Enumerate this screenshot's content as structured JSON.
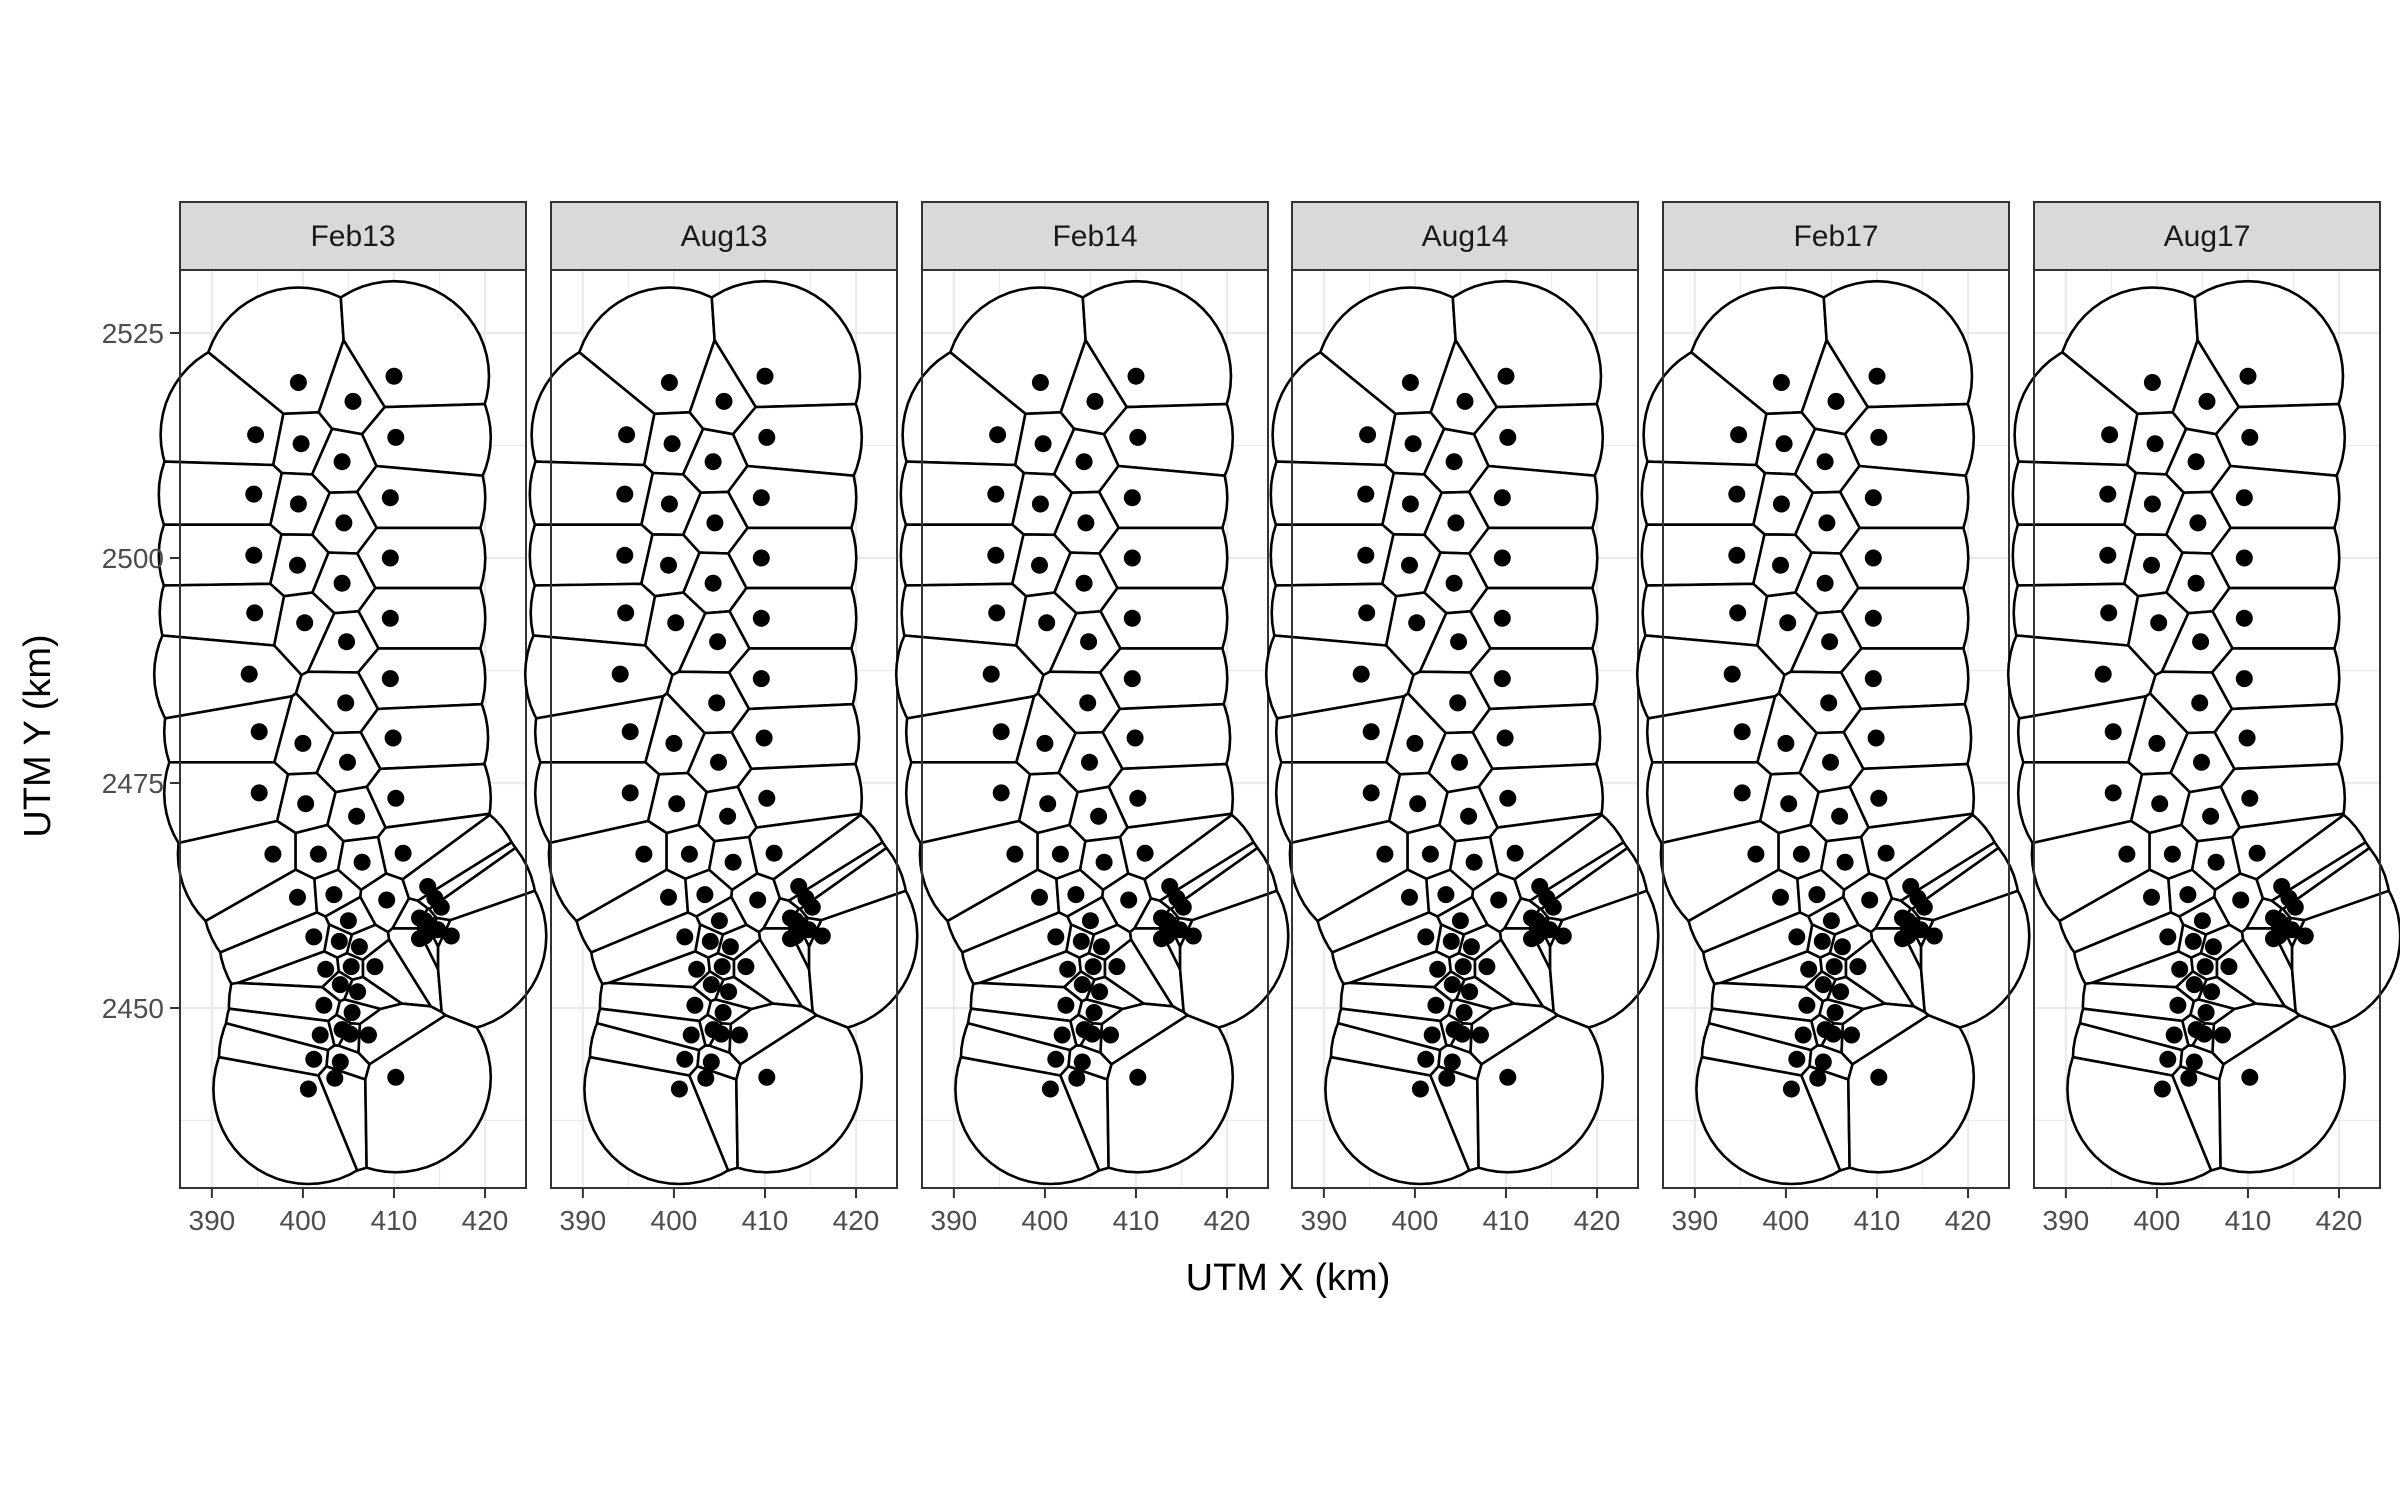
{
  "chart_data": {
    "type": "scatter",
    "description_free": true,
    "xlabel": "UTM X (km)",
    "ylabel": "UTM Y (km)",
    "xlim": [
      386.5,
      424.5
    ],
    "ylim": [
      2430,
      2532
    ],
    "x_ticks": [
      390,
      400,
      410,
      420
    ],
    "y_ticks": [
      2450,
      2475,
      2500,
      2525
    ],
    "grid": true,
    "colors": {
      "panel_border": "#333333",
      "strip_fill": "#d9d9d9",
      "grid": "#ebebeb",
      "point": "#000000"
    },
    "panels": [
      {
        "label": "Feb13"
      },
      {
        "label": "Aug13"
      },
      {
        "label": "Feb14"
      },
      {
        "label": "Aug14"
      },
      {
        "label": "Feb17"
      },
      {
        "label": "Aug17"
      }
    ],
    "points": [
      [
        399.5,
        2519.5
      ],
      [
        410,
        2520.2
      ],
      [
        394.8,
        2513.7
      ],
      [
        399.8,
        2512.7
      ],
      [
        405.5,
        2517.4
      ],
      [
        410.2,
        2513.4
      ],
      [
        404.3,
        2510.7
      ],
      [
        394.6,
        2507.1
      ],
      [
        399.5,
        2506
      ],
      [
        409.6,
        2506.7
      ],
      [
        404.5,
        2503.9
      ],
      [
        394.6,
        2500.3
      ],
      [
        399.4,
        2499.2
      ],
      [
        409.6,
        2500
      ],
      [
        404.3,
        2497.2
      ],
      [
        394.7,
        2493.9
      ],
      [
        400.2,
        2492.8
      ],
      [
        409.6,
        2493.3
      ],
      [
        404.8,
        2490.7
      ],
      [
        394.1,
        2487.1
      ],
      [
        409.6,
        2486.6
      ],
      [
        404.7,
        2483.9
      ],
      [
        395.2,
        2480.7
      ],
      [
        400,
        2479.4
      ],
      [
        409.9,
        2480
      ],
      [
        404.9,
        2477.3
      ],
      [
        395.2,
        2473.9
      ],
      [
        400.3,
        2472.7
      ],
      [
        410.2,
        2473.3
      ],
      [
        405.9,
        2471.3
      ],
      [
        396.7,
        2467.1
      ],
      [
        401.7,
        2467.1
      ],
      [
        411,
        2467.2
      ],
      [
        406.5,
        2466.2
      ],
      [
        399.4,
        2462.3
      ],
      [
        403.4,
        2462.6
      ],
      [
        409.2,
        2462
      ],
      [
        413.7,
        2463.5
      ],
      [
        414.5,
        2462.2
      ],
      [
        415.2,
        2461.2
      ],
      [
        412.8,
        2460
      ],
      [
        413.4,
        2459.7
      ],
      [
        414.8,
        2458.7
      ],
      [
        413.7,
        2459.2
      ],
      [
        413.4,
        2458
      ],
      [
        412.8,
        2457.7
      ],
      [
        416.3,
        2458
      ],
      [
        401.2,
        2457.9
      ],
      [
        405,
        2459.7
      ],
      [
        404,
        2457.4
      ],
      [
        406.2,
        2456.8
      ],
      [
        402.5,
        2454.3
      ],
      [
        405.3,
        2454.6
      ],
      [
        407.9,
        2454.6
      ],
      [
        404.1,
        2452.6
      ],
      [
        406,
        2451.8
      ],
      [
        402.3,
        2450.3
      ],
      [
        405.4,
        2449.5
      ],
      [
        404.3,
        2447.6
      ],
      [
        405.2,
        2447.1
      ],
      [
        401.9,
        2447
      ],
      [
        407.2,
        2447
      ],
      [
        401.2,
        2444.3
      ],
      [
        404.1,
        2444
      ],
      [
        403.5,
        2442.2
      ],
      [
        400.6,
        2441
      ],
      [
        410.2,
        2442.3
      ]
    ]
  }
}
